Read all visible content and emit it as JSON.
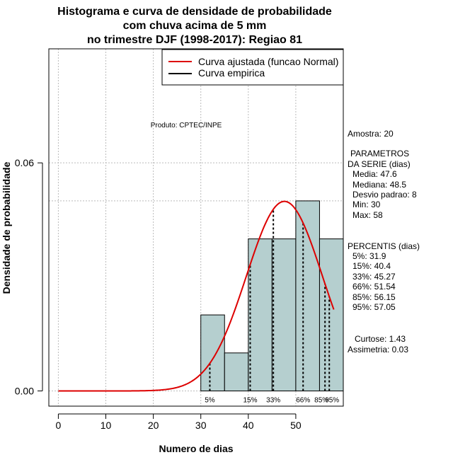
{
  "chart_data": {
    "type": "histogram",
    "title_lines": [
      "Histograma e curva de densidade de probabilidade",
      "com chuva acima de 5 mm",
      "no trimestre DJF (1998-2017): Regiao 81"
    ],
    "xlabel": "Numero de dias",
    "ylabel": "Densidade de probabilidade",
    "xlim": [
      -2,
      60
    ],
    "ylim": [
      -0.004,
      0.09
    ],
    "x_ticks": [
      0,
      10,
      20,
      30,
      40,
      50
    ],
    "y_ticks": [
      0.0,
      0.06
    ],
    "y_tick_labels": [
      "0.00",
      "0.06"
    ],
    "bins": [
      {
        "from": 30,
        "to": 35,
        "density": 0.02
      },
      {
        "from": 35,
        "to": 40,
        "density": 0.01
      },
      {
        "from": 40,
        "to": 45,
        "density": 0.04
      },
      {
        "from": 45,
        "to": 50,
        "density": 0.04
      },
      {
        "from": 50,
        "to": 55,
        "density": 0.05
      },
      {
        "from": 55,
        "to": 60,
        "density": 0.04
      }
    ],
    "normal_curve": {
      "mean": 47.6,
      "sd": 8,
      "x_from": 0,
      "x_to": 58
    },
    "ref_line_y": 0.05,
    "percentiles": [
      {
        "label": "5%",
        "value": 31.9
      },
      {
        "label": "15%",
        "value": 40.4
      },
      {
        "label": "33%",
        "value": 45.27
      },
      {
        "label": "66%",
        "value": 51.54
      },
      {
        "label": "85%",
        "value": 56.15
      },
      {
        "label": "95%",
        "value": 57.05
      }
    ],
    "legend": {
      "placement": "top-right",
      "entries": [
        {
          "label": "Curva ajustada (funcao Normal)",
          "color": "#dd0000"
        },
        {
          "label": "Curva empirica",
          "color": "#000000"
        }
      ]
    },
    "product_label": "Produto: CPTEC/INPE",
    "stats_panel": {
      "amostra": "Amostra: 20",
      "parametros_title": [
        "PARAMETROS",
        "DA SERIE (dias)"
      ],
      "parametros": [
        "Media: 47.6",
        "Mediana: 48.5",
        "Desvio padrao: 8",
        "Min: 30",
        "Max: 58"
      ],
      "percentis_title": "PERCENTIS (dias)",
      "percentis": [
        "5%: 31.9",
        "15%: 40.4",
        "33%: 45.27",
        "66%: 51.54",
        "85%: 56.15",
        "95%: 57.05"
      ],
      "curtose": "Curtose: 1.43",
      "assimetria": "Assimetria: 0.03"
    },
    "colors": {
      "bar_fill": "#b5cfcf",
      "curve": "#dd0000",
      "grid": "#bbbbbb"
    }
  }
}
